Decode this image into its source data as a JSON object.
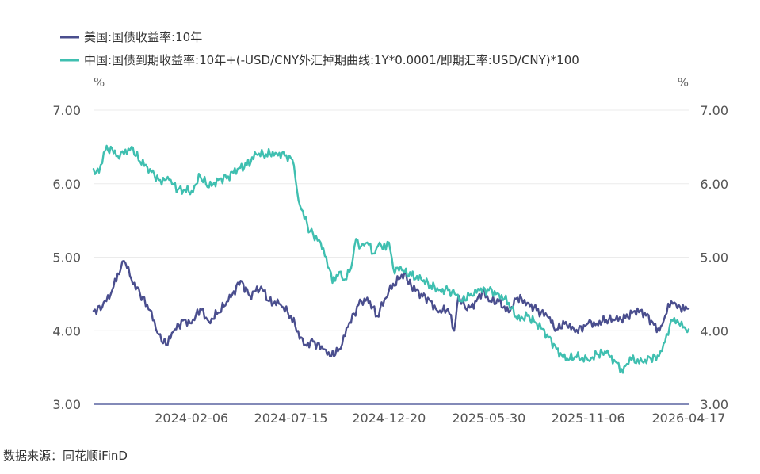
{
  "chart_data": {
    "type": "line",
    "legend_position": "top-left",
    "grid": true,
    "x_labels": [
      "2024-02-06",
      "2024-07-15",
      "2024-12-20",
      "2025-05-30",
      "2025-11-06",
      "2026-04-17"
    ],
    "x_range": [
      "2023-09-01",
      "2026-04-17"
    ],
    "y_left": {
      "unit": "%",
      "ticks": [
        "7.00",
        "6.00",
        "5.00",
        "4.00",
        "3.00"
      ],
      "ylim": [
        3,
        7
      ]
    },
    "y_right": {
      "unit": "%",
      "ticks": [
        "7.00",
        "6.00",
        "5.00",
        "4.00",
        "3.00"
      ],
      "ylim": [
        3,
        7
      ]
    },
    "series": [
      {
        "name": "美国:国债收益率:10年",
        "color": "#4a4e8e",
        "points": [
          [
            "2023-09-01",
            4.27
          ],
          [
            "2023-09-15",
            4.32
          ],
          [
            "2023-10-01",
            4.55
          ],
          [
            "2023-10-10",
            4.78
          ],
          [
            "2023-10-20",
            4.95
          ],
          [
            "2023-10-25",
            4.85
          ],
          [
            "2023-11-01",
            4.7
          ],
          [
            "2023-11-15",
            4.5
          ],
          [
            "2023-12-01",
            4.28
          ],
          [
            "2023-12-15",
            3.95
          ],
          [
            "2023-12-27",
            3.8
          ],
          [
            "2024-01-10",
            4.02
          ],
          [
            "2024-01-25",
            4.15
          ],
          [
            "2024-02-06",
            4.1
          ],
          [
            "2024-02-20",
            4.3
          ],
          [
            "2024-03-05",
            4.12
          ],
          [
            "2024-03-20",
            4.25
          ],
          [
            "2024-04-05",
            4.4
          ],
          [
            "2024-04-25",
            4.68
          ],
          [
            "2024-05-10",
            4.48
          ],
          [
            "2024-05-28",
            4.6
          ],
          [
            "2024-06-10",
            4.4
          ],
          [
            "2024-06-28",
            4.36
          ],
          [
            "2024-07-15",
            4.2
          ],
          [
            "2024-08-05",
            3.8
          ],
          [
            "2024-08-20",
            3.85
          ],
          [
            "2024-09-05",
            3.75
          ],
          [
            "2024-09-16",
            3.65
          ],
          [
            "2024-10-01",
            3.75
          ],
          [
            "2024-10-15",
            4.05
          ],
          [
            "2024-11-01",
            4.35
          ],
          [
            "2024-11-15",
            4.45
          ],
          [
            "2024-12-01",
            4.2
          ],
          [
            "2024-12-20",
            4.55
          ],
          [
            "2025-01-14",
            4.79
          ],
          [
            "2025-01-25",
            4.6
          ],
          [
            "2025-02-10",
            4.5
          ],
          [
            "2025-02-25",
            4.4
          ],
          [
            "2025-03-10",
            4.25
          ],
          [
            "2025-03-25",
            4.3
          ],
          [
            "2025-04-04",
            4.0
          ],
          [
            "2025-04-11",
            4.48
          ],
          [
            "2025-04-25",
            4.28
          ],
          [
            "2025-05-10",
            4.4
          ],
          [
            "2025-05-22",
            4.58
          ],
          [
            "2025-05-30",
            4.4
          ],
          [
            "2025-06-15",
            4.4
          ],
          [
            "2025-07-01",
            4.25
          ],
          [
            "2025-07-15",
            4.45
          ],
          [
            "2025-07-31",
            4.38
          ],
          [
            "2025-08-15",
            4.28
          ],
          [
            "2025-09-01",
            4.2
          ],
          [
            "2025-09-16",
            4.02
          ],
          [
            "2025-10-01",
            4.12
          ],
          [
            "2025-10-16",
            3.98
          ],
          [
            "2025-11-06",
            4.1
          ],
          [
            "2025-11-20",
            4.1
          ],
          [
            "2025-12-05",
            4.15
          ],
          [
            "2025-12-20",
            4.15
          ],
          [
            "2026-01-05",
            4.17
          ],
          [
            "2026-01-20",
            4.27
          ],
          [
            "2026-02-05",
            4.25
          ],
          [
            "2026-02-20",
            4.08
          ],
          [
            "2026-03-01",
            4.0
          ],
          [
            "2026-03-10",
            4.2
          ],
          [
            "2026-03-20",
            4.4
          ],
          [
            "2026-04-01",
            4.35
          ],
          [
            "2026-04-10",
            4.28
          ],
          [
            "2026-04-17",
            4.3
          ]
        ]
      },
      {
        "name": "中国:国债到期收益率:10年+(-USD/CNY外汇掉期曲线:1Y*0.0001/即期汇率:USD/CNY)*100",
        "color": "#3fbfb0",
        "points": [
          [
            "2023-09-01",
            6.2
          ],
          [
            "2023-09-10",
            6.15
          ],
          [
            "2023-09-20",
            6.45
          ],
          [
            "2023-10-01",
            6.48
          ],
          [
            "2023-10-10",
            6.38
          ],
          [
            "2023-10-20",
            6.4
          ],
          [
            "2023-11-01",
            6.5
          ],
          [
            "2023-11-15",
            6.3
          ],
          [
            "2023-12-01",
            6.2
          ],
          [
            "2023-12-15",
            6.05
          ],
          [
            "2024-01-01",
            6.05
          ],
          [
            "2024-01-15",
            5.92
          ],
          [
            "2024-02-06",
            5.9
          ],
          [
            "2024-02-20",
            6.1
          ],
          [
            "2024-03-05",
            5.95
          ],
          [
            "2024-03-20",
            6.05
          ],
          [
            "2024-04-05",
            6.1
          ],
          [
            "2024-04-20",
            6.2
          ],
          [
            "2024-05-05",
            6.25
          ],
          [
            "2024-05-20",
            6.4
          ],
          [
            "2024-06-05",
            6.4
          ],
          [
            "2024-06-20",
            6.42
          ],
          [
            "2024-07-05",
            6.38
          ],
          [
            "2024-07-15",
            6.35
          ],
          [
            "2024-07-20",
            6.25
          ],
          [
            "2024-07-25",
            5.9
          ],
          [
            "2024-08-01",
            5.65
          ],
          [
            "2024-08-15",
            5.35
          ],
          [
            "2024-09-01",
            5.2
          ],
          [
            "2024-09-10",
            5.0
          ],
          [
            "2024-09-20",
            4.65
          ],
          [
            "2024-10-01",
            4.8
          ],
          [
            "2024-10-10",
            4.7
          ],
          [
            "2024-10-20",
            4.85
          ],
          [
            "2024-10-28",
            5.25
          ],
          [
            "2024-11-05",
            5.15
          ],
          [
            "2024-11-15",
            5.2
          ],
          [
            "2024-11-25",
            5.05
          ],
          [
            "2024-12-05",
            5.2
          ],
          [
            "2024-12-15",
            5.1
          ],
          [
            "2024-12-20",
            5.2
          ],
          [
            "2024-12-27",
            4.85
          ],
          [
            "2025-01-10",
            4.82
          ],
          [
            "2025-01-25",
            4.75
          ],
          [
            "2025-02-10",
            4.7
          ],
          [
            "2025-02-25",
            4.62
          ],
          [
            "2025-03-10",
            4.55
          ],
          [
            "2025-03-25",
            4.55
          ],
          [
            "2025-04-05",
            4.5
          ],
          [
            "2025-04-15",
            4.4
          ],
          [
            "2025-05-01",
            4.5
          ],
          [
            "2025-05-15",
            4.55
          ],
          [
            "2025-05-30",
            4.55
          ],
          [
            "2025-06-15",
            4.5
          ],
          [
            "2025-07-01",
            4.38
          ],
          [
            "2025-07-15",
            4.15
          ],
          [
            "2025-07-31",
            4.2
          ],
          [
            "2025-08-15",
            4.1
          ],
          [
            "2025-09-01",
            3.95
          ],
          [
            "2025-09-16",
            3.75
          ],
          [
            "2025-10-01",
            3.6
          ],
          [
            "2025-10-16",
            3.65
          ],
          [
            "2025-11-06",
            3.6
          ],
          [
            "2025-11-20",
            3.68
          ],
          [
            "2025-12-05",
            3.7
          ],
          [
            "2025-12-20",
            3.58
          ],
          [
            "2025-12-30",
            3.48
          ],
          [
            "2026-01-05",
            3.52
          ],
          [
            "2026-01-15",
            3.6
          ],
          [
            "2026-02-01",
            3.58
          ],
          [
            "2026-02-15",
            3.62
          ],
          [
            "2026-02-28",
            3.65
          ],
          [
            "2026-03-10",
            3.85
          ],
          [
            "2026-03-20",
            4.15
          ],
          [
            "2026-04-01",
            4.1
          ],
          [
            "2026-04-10",
            4.05
          ],
          [
            "2026-04-17",
            4.02
          ]
        ]
      }
    ]
  },
  "source_note": "数据来源：同花顺iFinD"
}
